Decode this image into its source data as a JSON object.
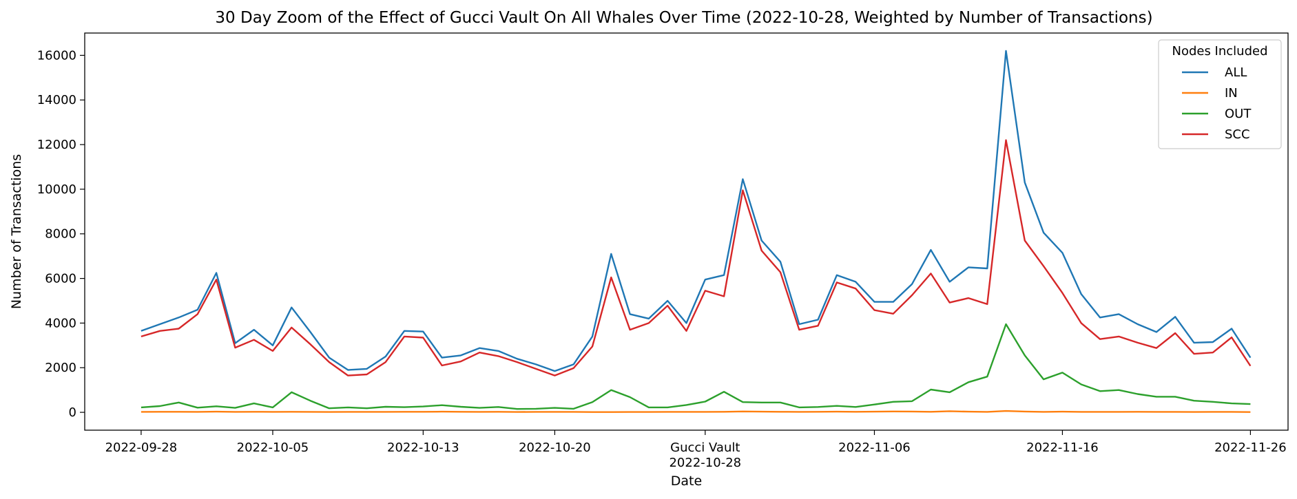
{
  "chart_data": {
    "type": "line",
    "title": "30 Day Zoom of the Effect of Gucci Vault On All Whales Over Time (2022-10-28, Weighted by Number of Transactions)",
    "xlabel": "Date",
    "ylabel": "Number of Transactions",
    "ylim": [
      -800,
      17000
    ],
    "yticks": [
      0,
      2000,
      4000,
      6000,
      8000,
      10000,
      12000,
      14000,
      16000
    ],
    "xlim": [
      "2022-09-25",
      "2022-11-28"
    ],
    "x_ticks": [
      {
        "date": "2022-09-28",
        "label": "2022-09-28"
      },
      {
        "date": "2022-10-05",
        "label": "2022-10-05"
      },
      {
        "date": "2022-10-13",
        "label": "2022-10-13"
      },
      {
        "date": "2022-10-20",
        "label": "2022-10-20"
      },
      {
        "date": "2022-10-28",
        "label": "Gucci Vault",
        "label2": "2022-10-28"
      },
      {
        "date": "2022-11-06",
        "label": "2022-11-06"
      },
      {
        "date": "2022-11-16",
        "label": "2022-11-16"
      },
      {
        "date": "2022-11-26",
        "label": "2022-11-26"
      }
    ],
    "grid": false,
    "legend": {
      "title": "Nodes Included",
      "position": "top-right"
    },
    "x": [
      "2022-09-28",
      "2022-09-29",
      "2022-09-30",
      "2022-10-01",
      "2022-10-02",
      "2022-10-03",
      "2022-10-04",
      "2022-10-05",
      "2022-10-06",
      "2022-10-07",
      "2022-10-08",
      "2022-10-09",
      "2022-10-10",
      "2022-10-11",
      "2022-10-12",
      "2022-10-13",
      "2022-10-14",
      "2022-10-15",
      "2022-10-16",
      "2022-10-17",
      "2022-10-18",
      "2022-10-19",
      "2022-10-20",
      "2022-10-21",
      "2022-10-22",
      "2022-10-23",
      "2022-10-24",
      "2022-10-25",
      "2022-10-26",
      "2022-10-27",
      "2022-10-28",
      "2022-10-29",
      "2022-10-30",
      "2022-10-31",
      "2022-11-01",
      "2022-11-02",
      "2022-11-03",
      "2022-11-04",
      "2022-11-05",
      "2022-11-06",
      "2022-11-07",
      "2022-11-08",
      "2022-11-09",
      "2022-11-10",
      "2022-11-11",
      "2022-11-12",
      "2022-11-13",
      "2022-11-14",
      "2022-11-15",
      "2022-11-16",
      "2022-11-17",
      "2022-11-18",
      "2022-11-19",
      "2022-11-20",
      "2022-11-21",
      "2022-11-22",
      "2022-11-23",
      "2022-11-24",
      "2022-11-25",
      "2022-11-26"
    ],
    "series": [
      {
        "name": "ALL",
        "color": "#1f77b4",
        "values": [
          3650,
          3950,
          4250,
          4600,
          6250,
          3100,
          3700,
          3000,
          4700,
          3600,
          2450,
          1900,
          1950,
          2500,
          3650,
          3620,
          2450,
          2550,
          2880,
          2750,
          2400,
          2150,
          1850,
          2150,
          3400,
          7100,
          4400,
          4200,
          5000,
          4000,
          5950,
          6150,
          10450,
          7700,
          6750,
          3950,
          4150,
          6150,
          5850,
          4950,
          4950,
          5750,
          7280,
          5850,
          6500,
          6450,
          16200,
          10300,
          8050,
          7150,
          5300,
          4250,
          4400,
          3950,
          3600,
          4280,
          3120,
          3150,
          3750,
          2450
        ]
      },
      {
        "name": "IN",
        "color": "#ff7f0e",
        "values": [
          20,
          25,
          25,
          20,
          30,
          20,
          25,
          20,
          25,
          20,
          15,
          20,
          20,
          20,
          25,
          25,
          30,
          25,
          20,
          25,
          15,
          20,
          20,
          20,
          10,
          10,
          15,
          15,
          20,
          20,
          20,
          25,
          40,
          30,
          25,
          20,
          25,
          30,
          25,
          30,
          40,
          35,
          25,
          50,
          30,
          20,
          60,
          35,
          20,
          30,
          20,
          20,
          20,
          25,
          20,
          20,
          15,
          20,
          20,
          10
        ]
      },
      {
        "name": "OUT",
        "color": "#2ca02c",
        "values": [
          220,
          280,
          440,
          210,
          270,
          200,
          400,
          220,
          900,
          520,
          180,
          220,
          180,
          250,
          230,
          260,
          320,
          250,
          200,
          240,
          150,
          160,
          200,
          160,
          460,
          1000,
          680,
          220,
          220,
          330,
          480,
          920,
          460,
          440,
          440,
          220,
          240,
          290,
          240,
          350,
          470,
          500,
          1020,
          900,
          1350,
          1600,
          3950,
          2550,
          1480,
          1780,
          1250,
          950,
          1000,
          820,
          700,
          700,
          520,
          470,
          400,
          370
        ]
      },
      {
        "name": "SCC",
        "color": "#d62728",
        "values": [
          3400,
          3650,
          3750,
          4400,
          5950,
          2900,
          3250,
          2750,
          3800,
          3050,
          2250,
          1650,
          1700,
          2250,
          3400,
          3350,
          2100,
          2280,
          2680,
          2520,
          2250,
          1950,
          1650,
          1980,
          2950,
          6050,
          3700,
          4000,
          4780,
          3650,
          5450,
          5200,
          9950,
          7250,
          6280,
          3700,
          3880,
          5820,
          5550,
          4580,
          4420,
          5250,
          6220,
          4920,
          5120,
          4850,
          12200,
          7700,
          6550,
          5350,
          4000,
          3280,
          3400,
          3120,
          2880,
          3550,
          2620,
          2680,
          3360,
          2080
        ]
      }
    ]
  }
}
